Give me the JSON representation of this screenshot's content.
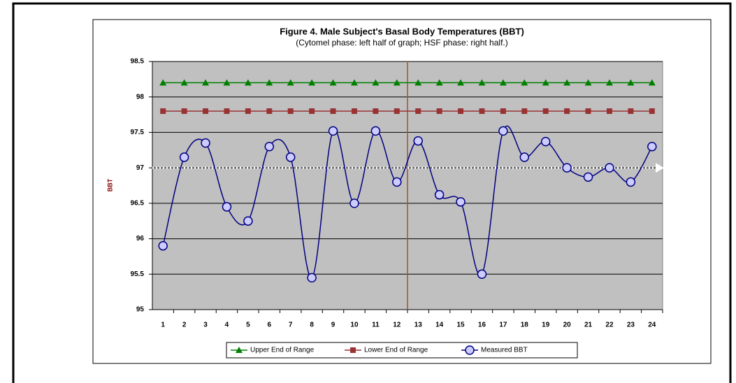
{
  "chart_data": {
    "type": "line",
    "title": "Figure 4. Male Subject's Basal Body Temperatures (BBT)",
    "subtitle": "(Cytomel phase: left half of graph; HSF phase: right half.)",
    "y_label": "BBT",
    "categories": [
      "1",
      "2",
      "3",
      "4",
      "5",
      "6",
      "7",
      "8",
      "9",
      "10",
      "11",
      "12",
      "13",
      "14",
      "15",
      "16",
      "17",
      "18",
      "19",
      "20",
      "21",
      "22",
      "23",
      "24"
    ],
    "series": [
      {
        "name": "Upper End of Range",
        "color": "#008000",
        "marker": "triangle",
        "values": [
          98.2,
          98.2,
          98.2,
          98.2,
          98.2,
          98.2,
          98.2,
          98.2,
          98.2,
          98.2,
          98.2,
          98.2,
          98.2,
          98.2,
          98.2,
          98.2,
          98.2,
          98.2,
          98.2,
          98.2,
          98.2,
          98.2,
          98.2,
          98.2
        ]
      },
      {
        "name": "Lower End of Range",
        "color": "#993333",
        "marker": "square",
        "values": [
          97.8,
          97.8,
          97.8,
          97.8,
          97.8,
          97.8,
          97.8,
          97.8,
          97.8,
          97.8,
          97.8,
          97.8,
          97.8,
          97.8,
          97.8,
          97.8,
          97.8,
          97.8,
          97.8,
          97.8,
          97.8,
          97.8,
          97.8,
          97.8
        ]
      },
      {
        "name": "Measured BBT",
        "color": "#000080",
        "marker": "circle",
        "smooth": true,
        "values": [
          95.9,
          97.15,
          97.35,
          96.45,
          96.25,
          97.3,
          97.15,
          95.45,
          97.52,
          96.5,
          97.52,
          96.8,
          97.38,
          96.62,
          96.52,
          95.5,
          97.52,
          97.15,
          97.37,
          97.0,
          96.87,
          97.0,
          96.8,
          97.3
        ]
      }
    ],
    "threshold": 97,
    "ylim": [
      95,
      98.5
    ],
    "yticks": [
      95,
      95.5,
      96,
      96.5,
      97,
      97.5,
      98,
      98.5
    ],
    "grid": true,
    "legend": "bottom"
  }
}
